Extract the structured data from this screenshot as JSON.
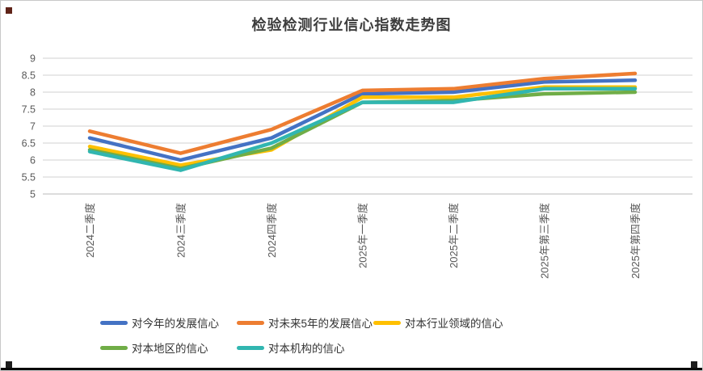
{
  "chart_data": {
    "type": "line",
    "title": "检验检测行业信心指数走势图",
    "categories": [
      "2024二季度",
      "2024三季度",
      "2024四季度",
      "2025年一季度",
      "2025年二季度",
      "2025年第三季度",
      "2025年第四季度"
    ],
    "series": [
      {
        "name": "对今年的发展信心",
        "color": "#4472C4",
        "values": [
          6.65,
          6.0,
          6.65,
          7.95,
          8.0,
          8.3,
          8.35
        ]
      },
      {
        "name": "对未来5年的发展信心",
        "color": "#ED7D31",
        "values": [
          6.85,
          6.2,
          6.9,
          8.05,
          8.1,
          8.4,
          8.55
        ]
      },
      {
        "name": "对本行业领域的信心",
        "color": "#FFC000",
        "values": [
          6.4,
          5.85,
          6.3,
          7.85,
          7.85,
          8.15,
          8.15
        ]
      },
      {
        "name": "对本地区的信心",
        "color": "#70AD47",
        "values": [
          6.3,
          5.75,
          6.35,
          7.7,
          7.75,
          7.95,
          8.0
        ]
      },
      {
        "name": "对本机构的信心",
        "color": "#31B6B0",
        "values": [
          6.25,
          5.7,
          6.5,
          7.7,
          7.7,
          8.1,
          8.1
        ]
      }
    ],
    "xlabel": "",
    "ylabel": "",
    "ylim": [
      5,
      9
    ],
    "ytick_step": 0.5,
    "ytick_labels": [
      "5",
      "5.5",
      "6",
      "6.5",
      "7",
      "7.5",
      "8",
      "8.5",
      "9"
    ],
    "grid": true,
    "legend_position": "bottom",
    "gridline_color": "#D9D9D9",
    "axis_line_color": "#C6C6C6",
    "tick_label_color": "#595959"
  }
}
